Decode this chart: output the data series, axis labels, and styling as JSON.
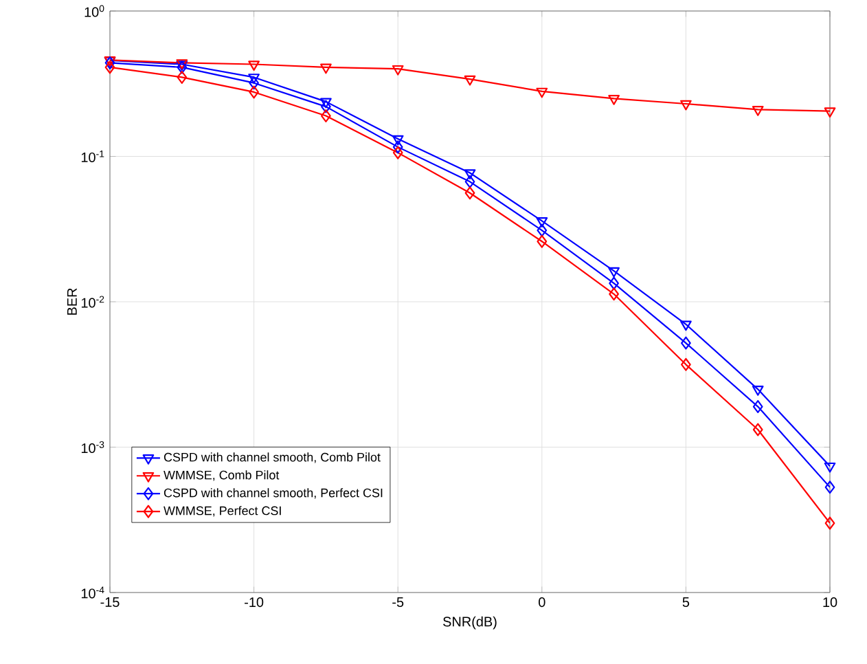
{
  "chart_data": {
    "type": "line",
    "xlabel": "SNR(dB)",
    "ylabel": "BER",
    "x": [
      -15,
      -12.5,
      -10,
      -7.5,
      -5,
      -2.5,
      0,
      2.5,
      5,
      7.5,
      10
    ],
    "series": [
      {
        "name": "CSPD with channel smooth, Comb Pilot",
        "color": "#0000ff",
        "marker": "triangle",
        "values": [
          0.457,
          0.43,
          0.35,
          0.238,
          0.132,
          0.077,
          0.036,
          0.0163,
          0.007,
          0.0025,
          0.00074
        ]
      },
      {
        "name": "WMMSE, Comb Pilot",
        "color": "#ff0000",
        "marker": "triangle",
        "values": [
          0.46,
          0.44,
          0.43,
          0.41,
          0.4,
          0.34,
          0.28,
          0.25,
          0.23,
          0.21,
          0.205
        ]
      },
      {
        "name": "CSPD with channel smooth, Perfect CSI",
        "color": "#0000ff",
        "marker": "diamond",
        "values": [
          0.44,
          0.41,
          0.32,
          0.22,
          0.116,
          0.067,
          0.031,
          0.0134,
          0.0052,
          0.0019,
          0.00053
        ]
      },
      {
        "name": "WMMSE, Perfect CSI",
        "color": "#ff0000",
        "marker": "diamond",
        "values": [
          0.41,
          0.35,
          0.277,
          0.19,
          0.106,
          0.056,
          0.026,
          0.0113,
          0.0037,
          0.00132,
          0.0003
        ]
      }
    ],
    "log": "y",
    "xlim": [
      -15,
      10
    ],
    "ylim": [
      0.0001,
      1
    ],
    "xticks": [
      -15,
      -10,
      -5,
      0,
      5,
      10
    ],
    "yticks": [
      {
        "value": 0.0001,
        "label": "10$^{-4}$"
      },
      {
        "value": 0.001,
        "label": "10$^{-3}$"
      },
      {
        "value": 0.01,
        "label": "10$^{-2}$"
      },
      {
        "value": 0.1,
        "label": "10$^{-1}$"
      },
      {
        "value": 1,
        "label": "10$^{0}$"
      }
    ],
    "grid": true,
    "legend": "bottom left",
    "line_style": "solid"
  }
}
